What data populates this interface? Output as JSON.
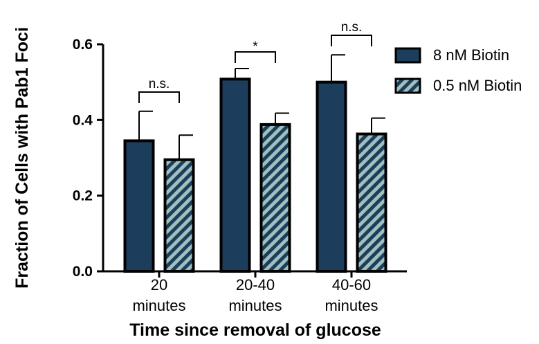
{
  "chart_data": {
    "type": "bar",
    "title": "",
    "xlabel": "Time since removal of glucose",
    "ylabel": "Fraction of Cells with Pab1 Foci",
    "ylim": [
      0,
      0.6
    ],
    "yticks": [
      "0.0",
      "0.2",
      "0.4",
      "0.6"
    ],
    "categories": [
      [
        "20",
        "minutes"
      ],
      [
        "20-40",
        "minutes"
      ],
      [
        "40-60",
        "minutes"
      ]
    ],
    "series": [
      {
        "name": "8 nM Biotin",
        "values": [
          0.345,
          0.508,
          0.5
        ],
        "errors": [
          0.078,
          0.028,
          0.072
        ],
        "color": "#1d3d5c",
        "pattern": "solid"
      },
      {
        "name": "0.5 nM Biotin",
        "values": [
          0.295,
          0.388,
          0.363
        ],
        "errors": [
          0.065,
          0.03,
          0.042
        ],
        "color": "#9fc0bd",
        "pattern": "hatched"
      }
    ],
    "significance": [
      "n.s.",
      "*",
      "n.s."
    ],
    "legend_position": "top-right",
    "grid": false
  }
}
